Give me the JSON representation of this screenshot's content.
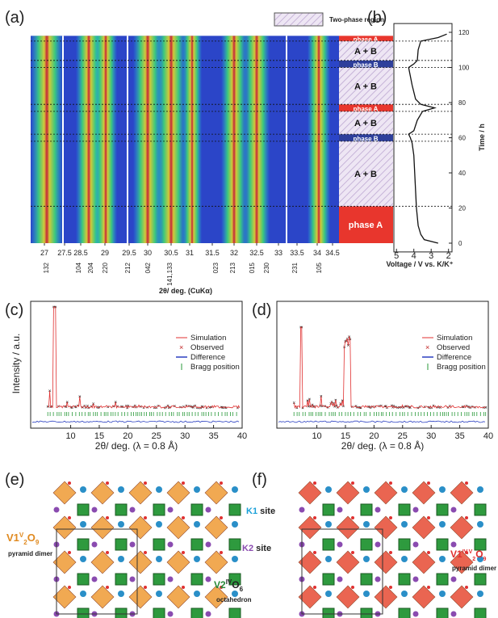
{
  "panel_labels": [
    "(a)",
    "(b)",
    "(c)",
    "(d)",
    "(e)",
    "(f)"
  ],
  "panel_a": {
    "legend": "Two-phase region",
    "x_ticks": [
      27,
      27.5,
      28.5,
      29,
      29.5,
      30,
      30.5,
      31,
      31.5,
      32,
      32.5,
      33,
      33.5,
      34,
      34.5
    ],
    "hkl": [
      "132",
      "104",
      "204",
      "220",
      "212",
      "042",
      "141,133",
      "023",
      "213",
      "015",
      "230",
      "231",
      "105"
    ],
    "x_label": "2θ/ deg. (CuKα)"
  },
  "panel_b": {
    "x_label": "Voltage / V vs. K/K⁺",
    "y_label": "Time / h",
    "xlim": [
      5.15,
      1.8
    ],
    "xticks": [
      5,
      4,
      3,
      2
    ],
    "ylim": [
      -5,
      125
    ],
    "yticks": [
      0,
      20,
      40,
      60,
      80,
      100,
      120
    ],
    "time": [
      0,
      2,
      5,
      10,
      20,
      30,
      40,
      50,
      57,
      60,
      62,
      64,
      70,
      75,
      77,
      79,
      82,
      90,
      100,
      102,
      104,
      110,
      115,
      117,
      119
    ],
    "voltage": [
      2.6,
      3.4,
      3.6,
      3.75,
      3.85,
      3.9,
      3.95,
      4.0,
      4.1,
      4.2,
      4.3,
      4.0,
      3.8,
      3.5,
      2.8,
      3.6,
      3.9,
      4.1,
      4.3,
      4.0,
      3.8,
      3.75,
      3.6,
      2.6,
      2.1
    ],
    "phase_boundaries": [
      0,
      21,
      58,
      62,
      75,
      79,
      100,
      104,
      115,
      118
    ],
    "phases": [
      "phase A",
      "A + B",
      "phase B",
      "A + B",
      "phase A",
      "A + B",
      "phase B",
      "A + B",
      "phase A"
    ]
  },
  "panel_c": {
    "y_label": "Intensity / a.u.",
    "x_label": "2θ/ deg. (λ = 0.8 Å)",
    "xlim": [
      3,
      40
    ],
    "xticks": [
      10,
      15,
      20,
      25,
      30,
      35,
      40
    ],
    "legend": [
      "Simulation",
      "Observed",
      "Difference",
      "Bragg position"
    ]
  },
  "panel_d": {
    "x_label": "2θ/ deg. (λ = 0.8 Å)",
    "xlim": [
      3,
      40
    ],
    "xticks": [
      10,
      15,
      20,
      25,
      30,
      35,
      40
    ],
    "legend": [
      "Simulation",
      "Observed",
      "Difference",
      "Bragg position"
    ]
  },
  "panel_e": {
    "pyramid": [
      "V1",
      "V",
      "2",
      "O",
      "9"
    ],
    "pyramid_note": "pyramid dimer",
    "k1": "K1",
    "k1_rest": "site",
    "k2": "K2",
    "k2_rest": "site",
    "octa": [
      "V2",
      "IV",
      "O",
      "6"
    ],
    "octa_note": "octahedron"
  },
  "panel_f": {
    "pyramid": [
      "V1",
      "IV,V",
      "2",
      "O",
      "9"
    ],
    "pyramid_note": "pyramid dimer"
  }
}
